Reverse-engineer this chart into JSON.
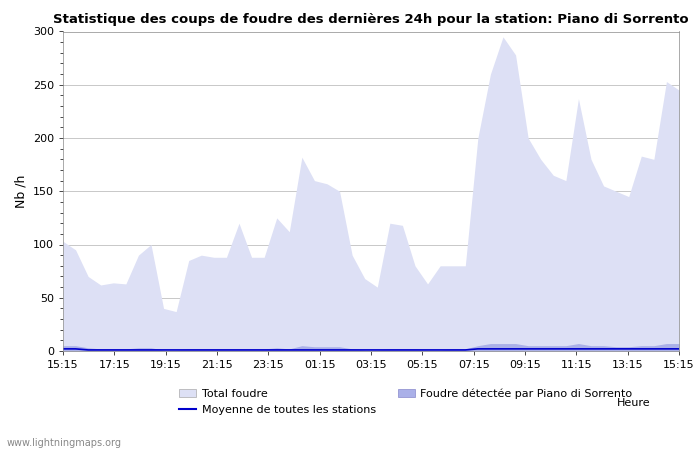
{
  "title": "Statistique des coups de foudre des dernières 24h pour la station: Piano di Sorrento",
  "xlabel": "Heure",
  "ylabel": "Nb /h",
  "xlim_labels": [
    "15:15",
    "17:15",
    "19:15",
    "21:15",
    "23:15",
    "01:15",
    "03:15",
    "05:15",
    "07:15",
    "09:15",
    "11:15",
    "13:15",
    "15:15"
  ],
  "ylim": [
    0,
    300
  ],
  "yticks": [
    0,
    50,
    100,
    150,
    200,
    250,
    300
  ],
  "background_color": "#ffffff",
  "plot_bg_color": "#ffffff",
  "grid_color": "#c8c8c8",
  "total_foudre_color": "#dde0f5",
  "foudre_detectee_color": "#aab0e8",
  "moyenne_color": "#0000cc",
  "watermark": "www.lightningmaps.org",
  "total_foudre_values": [
    103,
    95,
    70,
    62,
    64,
    63,
    90,
    100,
    40,
    37,
    85,
    90,
    88,
    88,
    120,
    88,
    88,
    125,
    112,
    182,
    160,
    157,
    150,
    90,
    68,
    60,
    120,
    118,
    80,
    63,
    80,
    80,
    80,
    200,
    260,
    295,
    278,
    200,
    180,
    165,
    160,
    237,
    180,
    155,
    150,
    145,
    183,
    180,
    253,
    245
  ],
  "foudre_detectee_values": [
    5,
    5,
    3,
    2,
    2,
    2,
    3,
    3,
    1,
    1,
    2,
    2,
    2,
    2,
    2,
    2,
    2,
    3,
    2,
    5,
    4,
    4,
    4,
    2,
    1,
    1,
    2,
    2,
    2,
    1,
    1,
    2,
    2,
    5,
    7,
    7,
    7,
    5,
    5,
    5,
    5,
    7,
    5,
    5,
    4,
    4,
    5,
    5,
    7,
    7
  ],
  "moyenne_values": [
    2,
    2,
    1,
    1,
    1,
    1,
    1,
    1,
    1,
    1,
    1,
    1,
    1,
    1,
    1,
    1,
    1,
    1,
    1,
    1,
    1,
    1,
    1,
    1,
    1,
    1,
    1,
    1,
    1,
    1,
    1,
    1,
    1,
    2,
    2,
    2,
    2,
    2,
    2,
    2,
    2,
    2,
    2,
    2,
    2,
    2,
    2,
    2,
    2,
    2
  ],
  "n_points": 50
}
